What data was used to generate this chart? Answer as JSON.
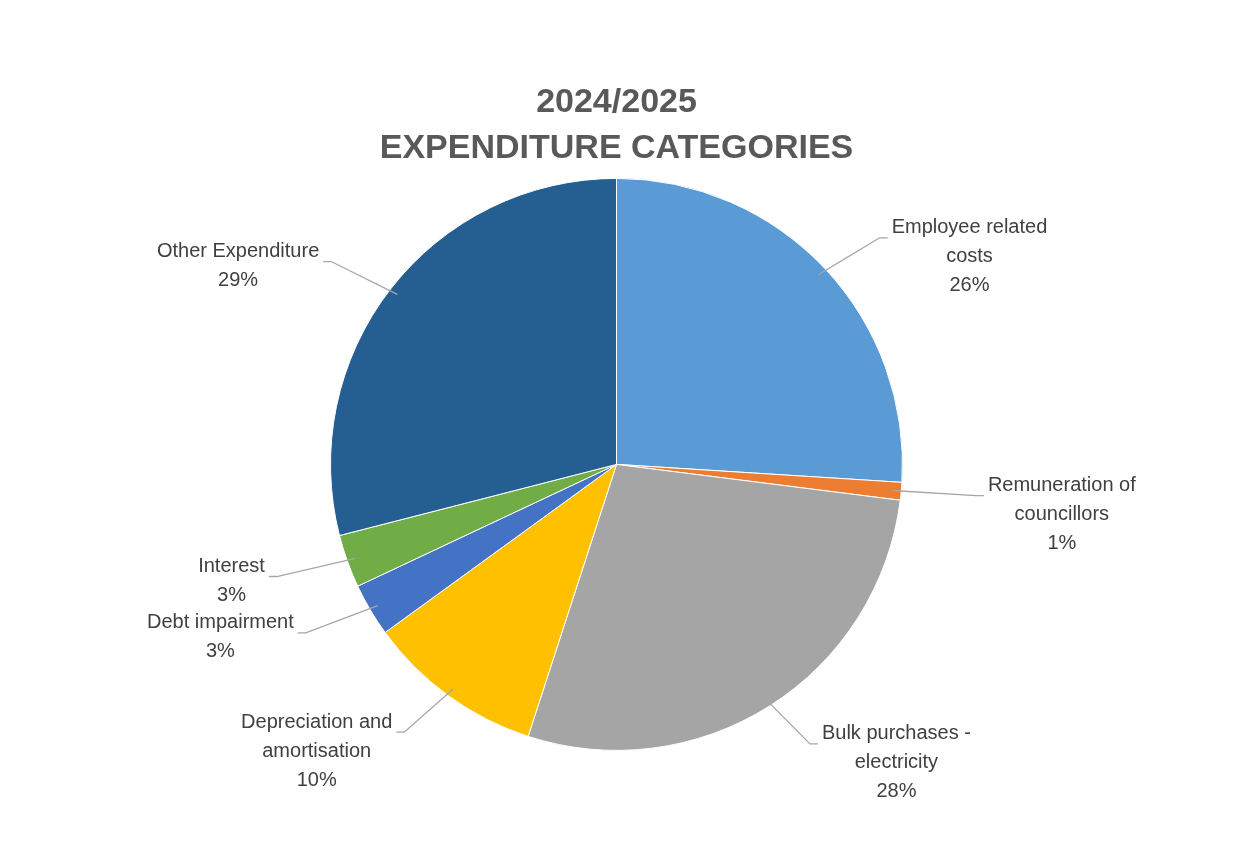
{
  "chart_data": {
    "type": "pie",
    "title": "2024/2025\nEXPENDITURE CATEGORIES",
    "categories": [
      "Employee related costs",
      "Remuneration of councillors",
      "Bulk purchases - electricity",
      "Depreciation and amortisation",
      "Debt impairment",
      "Interest",
      "Other Expenditure"
    ],
    "values": [
      26,
      1,
      28,
      10,
      3,
      3,
      29
    ],
    "value_labels": [
      "26%",
      "1%",
      "28%",
      "10%",
      "3%",
      "3%",
      "29%"
    ],
    "colors": [
      "#5b9bd5",
      "#ed7d31",
      "#a5a5a5",
      "#ffc000",
      "#4472c4",
      "#70ad47",
      "#255e91"
    ],
    "legend": false
  }
}
